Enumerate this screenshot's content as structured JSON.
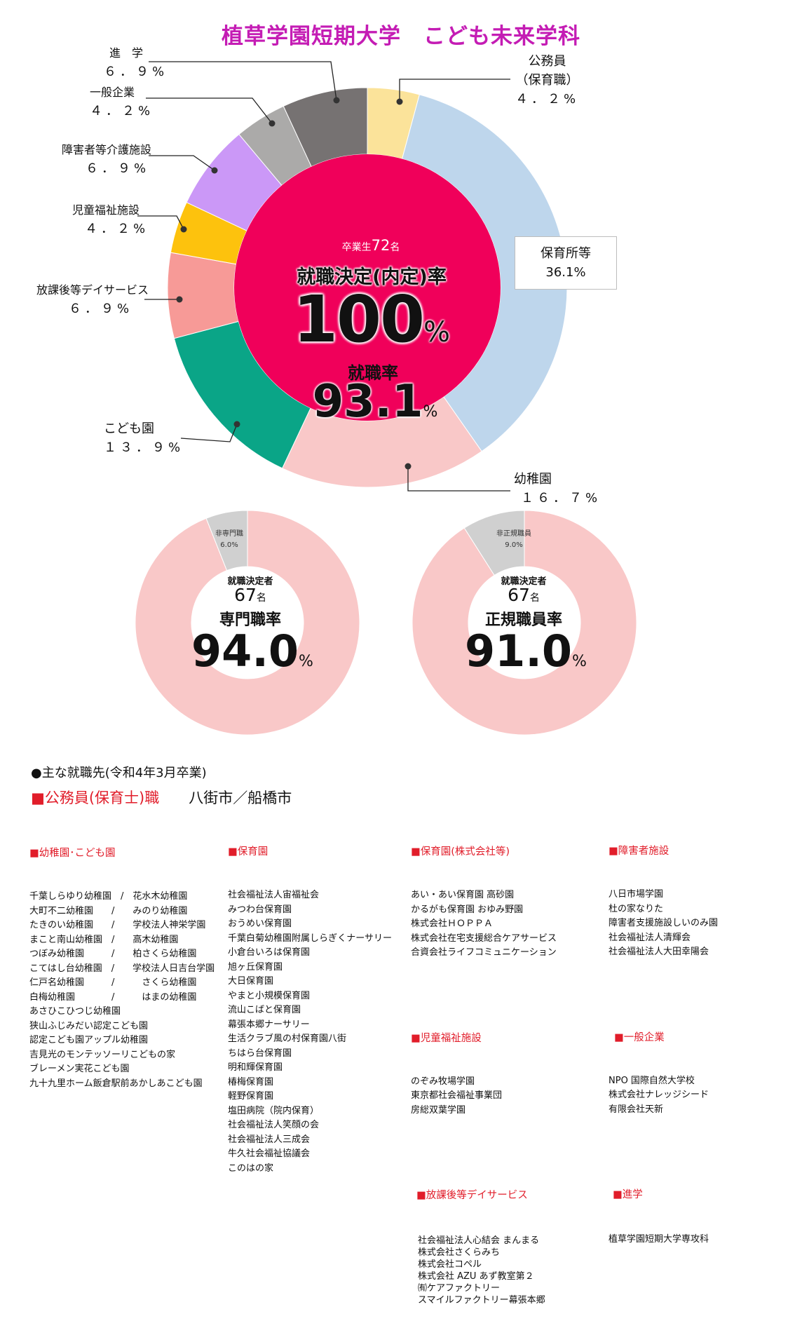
{
  "title": "植草学園短期大学　こども未来学科",
  "colors": {
    "title": "#c41cb4",
    "center_red": "#f0005a",
    "pink_ring": "#f9c8c8",
    "gray_seg": "#d0d0d0",
    "section_red": "#e11d2a"
  },
  "chart_data": [
    {
      "type": "pie",
      "variant": "donut",
      "slices": [
        {
          "label": "公務員（保育職）",
          "value": 4.2,
          "color": "#fbe39a"
        },
        {
          "label": "保育所等",
          "value": 36.1,
          "color": "#bed6ec"
        },
        {
          "label": "幼稚園",
          "value": 16.7,
          "color": "#f9c8c8"
        },
        {
          "label": "こども園",
          "value": 13.9,
          "color": "#0aa587"
        },
        {
          "label": "放課後等デイサービス",
          "value": 6.9,
          "color": "#f79a97"
        },
        {
          "label": "児童福祉施設",
          "value": 4.2,
          "color": "#fdc20d"
        },
        {
          "label": "障害者等介護施設",
          "value": 6.9,
          "color": "#cb98f7"
        },
        {
          "label": "一般企業",
          "value": 4.2,
          "color": "#abaaa9"
        },
        {
          "label": "進学",
          "value": 6.9,
          "color": "#767272"
        }
      ],
      "labels": {
        "koumuin": {
          "l1": "公務員",
          "l2": "（保育職）",
          "v": "４．２%"
        },
        "hoiku": {
          "l1": "保育所等",
          "v": "36.1%"
        },
        "youchien": {
          "l1": "幼稚園",
          "v": "１６．７%"
        },
        "kodomoen": {
          "l1": "こども園",
          "v": "１３．９%"
        },
        "houkago": {
          "l1": "放課後等デイサービス",
          "v": "６．９%"
        },
        "jidou": {
          "l1": "児童福祉施設",
          "v": "４．２%"
        },
        "shougai": {
          "l1": "障害者等介護施設",
          "v": "６．９%"
        },
        "ippan": {
          "l1": "一般企業",
          "v": "４．２%"
        },
        "shingaku": {
          "l1": "進　学",
          "v": "６．９%"
        }
      },
      "center": {
        "graduates_prefix": "卒業生",
        "graduates_count": "72",
        "graduates_suffix": "名",
        "decision_label": "就職決定(内定)率",
        "decision_value": "100",
        "decision_unit": "%",
        "employment_label": "就職率",
        "employment_value": "93.1",
        "employment_unit": "%"
      }
    },
    {
      "type": "pie",
      "variant": "donut",
      "slices": [
        {
          "label": "専門職",
          "value": 94.0,
          "color": "#f9c8c8"
        },
        {
          "label": "非専門職",
          "value": 6.0,
          "color": "#d0d0d0"
        }
      ],
      "minor_label": {
        "name": "非専門職",
        "value": "6.0%"
      },
      "center": {
        "top": "就職決定者",
        "count": "67",
        "count_unit": "名",
        "rate_label": "専門職率",
        "rate_value": "94.0",
        "rate_unit": "%"
      }
    },
    {
      "type": "pie",
      "variant": "donut",
      "slices": [
        {
          "label": "正規職員",
          "value": 91.0,
          "color": "#f9c8c8"
        },
        {
          "label": "非正規職員",
          "value": 9.0,
          "color": "#d0d0d0"
        }
      ],
      "minor_label": {
        "name": "非正規職員",
        "value": "9.0%"
      },
      "center": {
        "top": "就職決定者",
        "count": "67",
        "count_unit": "名",
        "rate_label": "正規職員率",
        "rate_value": "91.0",
        "rate_unit": "%"
      }
    }
  ],
  "employers": {
    "header": "●主な就職先(令和4年3月卒業)",
    "koumuin_label": "■公務員(保育士)職",
    "koumuin_places": "八街市／船橋市",
    "col1": {
      "head": "■幼稚園･こども園",
      "items": [
        "千葉しらゆり幼稚園　/　花水木幼稚園",
        "大町不二幼稚園　　/　　みのり幼稚園",
        "たきのい幼稚園　　/　　学校法人神栄学園",
        "まこと南山幼稚園　/　　高木幼稚園",
        "つぼみ幼稚園　　　/　　柏さくら幼稚園",
        "こてはし台幼稚園　/　　学校法人日吉台学園",
        "仁戸名幼稚園　　　/　　　さくら幼稚園",
        "白梅幼稚園　　　　/　　　はまの幼稚園",
        "あさひこひつじ幼稚園",
        "狭山ふじみだい認定こども園",
        "認定こども園アップル幼稚園",
        "吉見光のモンテッソーリこどもの家",
        "ブレーメン実花こども園",
        "九十九里ホーム飯倉駅前あかしあこども園"
      ]
    },
    "col2": {
      "head": "■保育園",
      "items": [
        "社会福祉法人宙福祉会",
        "みつわ台保育園",
        "おうめい保育園",
        "千葉白菊幼稚園附属しらぎくナーサリー",
        "小倉台いろは保育園",
        "旭ヶ丘保育園",
        "大日保育園",
        "やまと小規模保育園",
        "流山こばと保育園",
        "幕張本郷ナーサリー",
        "生活クラブ風の村保育園八街",
        "ちはら台保育園",
        "明和輝保育園",
        "椿梅保育園",
        "軽野保育園",
        "塩田病院（院内保育）",
        "社会福祉法人笑顔の会",
        "社会福祉法人三成会",
        "牛久社会福祉協議会",
        "このはの家"
      ]
    },
    "col3a": {
      "head": "■保育園(株式会社等)",
      "items": [
        "あい・あい保育園 高砂園",
        "かるがも保育園 おゆみ野園",
        "株式会社ＨＯＰＰＡ",
        "株式会社在宅支援総合ケアサービス",
        "合資会社ライフコミュニケーション"
      ]
    },
    "col3b": {
      "head": "■児童福祉施設",
      "items": [
        "のぞみ牧場学園",
        "東京都社会福祉事業団",
        "房総双葉学園"
      ]
    },
    "col3c": {
      "head": "■放課後等デイサービス",
      "items": [
        "社会福祉法人心結会 まんまる",
        "株式会社さくらみち",
        "株式会社コペル",
        "株式会社 AZU あず教室第２",
        "㈲ケアファクトリー",
        "スマイルファクトリー幕張本郷"
      ]
    },
    "col4a": {
      "head": "■障害者施設",
      "items": [
        "八日市場学園",
        "杜の家なりた",
        "障害者支援施設しいのみ園",
        "社会福祉法人清輝会",
        "社会福祉法人大田幸陽会"
      ]
    },
    "col4b": {
      "head": "■一般企業",
      "items": [
        "NPO 国際自然大学校",
        "株式会社ナレッジシード",
        "有限会社天新"
      ]
    },
    "col4c": {
      "head": "■進学",
      "items": [
        "植草学園短期大学専攻科"
      ]
    }
  }
}
